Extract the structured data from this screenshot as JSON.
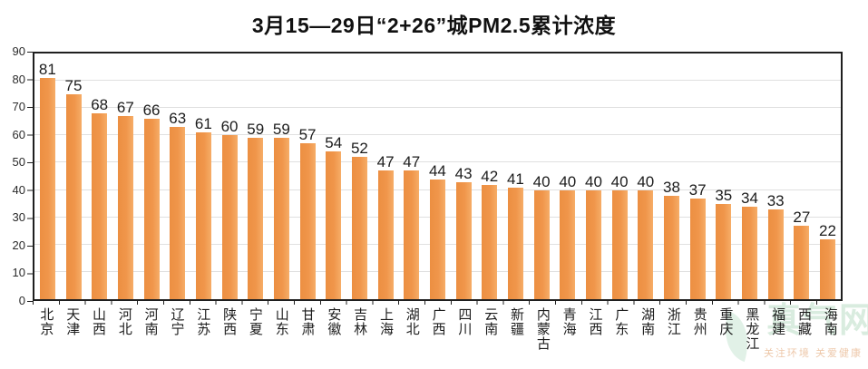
{
  "title": "3月15—29日“2+26”城PM2.5累计浓度",
  "chart_data": {
    "type": "bar",
    "title": "3月15—29日“2+26”城PM2.5累计浓度",
    "categories": [
      "北京",
      "天津",
      "山西",
      "河北",
      "河南",
      "辽宁",
      "江苏",
      "陕西",
      "宁夏",
      "山东",
      "甘肃",
      "安徽",
      "吉林",
      "上海",
      "湖北",
      "广西",
      "四川",
      "云南",
      "新疆",
      "内蒙古",
      "青海",
      "江西",
      "广东",
      "湖南",
      "浙江",
      "贵州",
      "重庆",
      "黑龙江",
      "福建",
      "西藏",
      "海南"
    ],
    "values": [
      81,
      75,
      68,
      67,
      66,
      63,
      61,
      60,
      59,
      59,
      57,
      54,
      52,
      47,
      47,
      44,
      43,
      42,
      41,
      40,
      40,
      40,
      40,
      40,
      38,
      37,
      35,
      34,
      33,
      27,
      22
    ],
    "xlabel": "",
    "ylabel": "",
    "ylim": [
      0,
      90
    ],
    "yticks": [
      0,
      10,
      20,
      30,
      40,
      50,
      60,
      70,
      80,
      90
    ],
    "grid": true,
    "legend": "none",
    "bar_color": "#f0964b",
    "value_labels_shown": true
  },
  "watermark": {
    "logo_text": "真气网",
    "slogan": "关注环境 关爱健康",
    "logo_color": "#d9ecdf",
    "slogan_color": "#e2a371"
  }
}
